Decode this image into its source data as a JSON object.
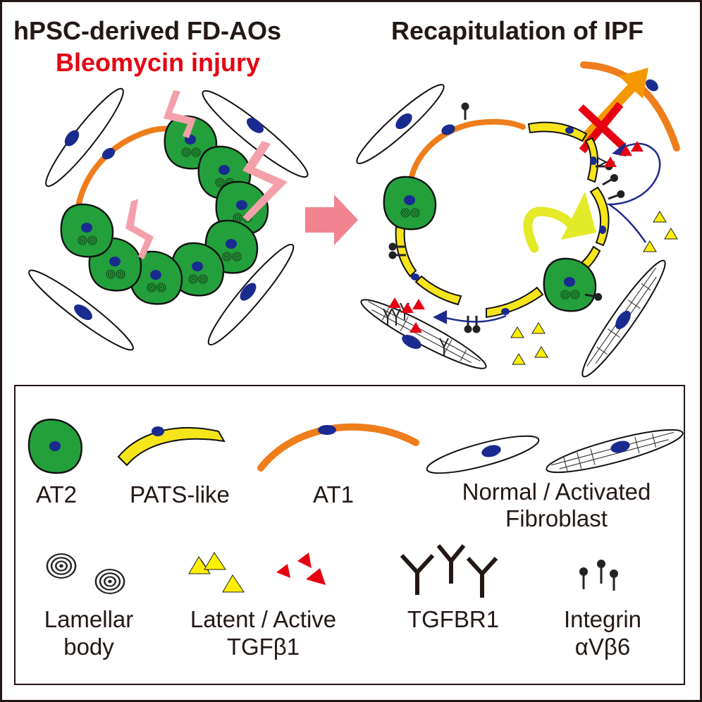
{
  "titles": {
    "left_line1": "hPSC-derived FD-AOs",
    "left_line2": "Bleomycin injury",
    "right": "Recapitulation of IPF"
  },
  "legend": {
    "at2": "AT2",
    "pats": "PATS-like",
    "at1": "AT1",
    "fibroblast_line1": "Normal / Activated",
    "fibroblast_line2": "Fibroblast",
    "lamellar_line1": "Lamellar",
    "lamellar_line2": "body",
    "tgfb_line1": "Latent / Active",
    "tgfb_line2": "TGFβ1",
    "tgfbr1": "TGFBR1",
    "integrin_line1": "Integrin",
    "integrin_line2": "αVβ6"
  },
  "colors": {
    "at2_green": "#23a03c",
    "nucleus_blue": "#1a2b8f",
    "pats_yellow": "#f7e51c",
    "at1_orange": "#ee7d1b",
    "injury_pink": "#f4a0aa",
    "arrow_pink": "#f2848f",
    "title_red": "#e50012",
    "tgfb_red": "#e60012",
    "tgfb_yellow": "#fff000",
    "curved_arrow_yellow": "#e4ea28",
    "signal_blue": "#1e2a8c",
    "cross_red": "#e60012",
    "arrow_orange": "#f39800"
  }
}
